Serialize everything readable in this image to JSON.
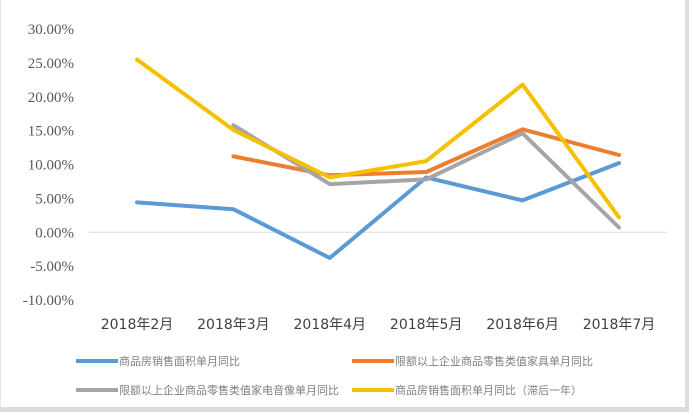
{
  "chart_data": {
    "type": "line",
    "title": "",
    "xlabel": "",
    "ylabel": "",
    "categories": [
      "2018年2月",
      "2018年3月",
      "2018年4月",
      "2018年5月",
      "2018年6月",
      "2018年7月"
    ],
    "y_ticks": [
      "30.00%",
      "25.00%",
      "20.00%",
      "15.00%",
      "10.00%",
      "5.00%",
      "0.00%",
      "-5.00%",
      "-10.00%"
    ],
    "ylim": [
      -10,
      30
    ],
    "grid": false,
    "legend_position": "bottom",
    "series": [
      {
        "name": "商品房销售面积单月同比",
        "color": "#5b9bd5",
        "values": [
          4.4,
          3.4,
          -3.8,
          8.1,
          4.7,
          10.2
        ]
      },
      {
        "name": "限额以上企业商品零售类值家具单月同比",
        "color": "#ed7d31",
        "values": [
          null,
          11.2,
          8.4,
          8.9,
          15.2,
          11.4
        ]
      },
      {
        "name": "限额以上企业商品零售类值家电音像单月同比",
        "color": "#a5a5a5",
        "values": [
          null,
          15.8,
          7.1,
          7.8,
          14.6,
          0.7
        ]
      },
      {
        "name": "商品房销售面积单月同比（滞后一年）",
        "color": "#f5c000",
        "values": [
          25.5,
          15.1,
          8.1,
          10.5,
          21.8,
          2.2
        ]
      }
    ]
  }
}
